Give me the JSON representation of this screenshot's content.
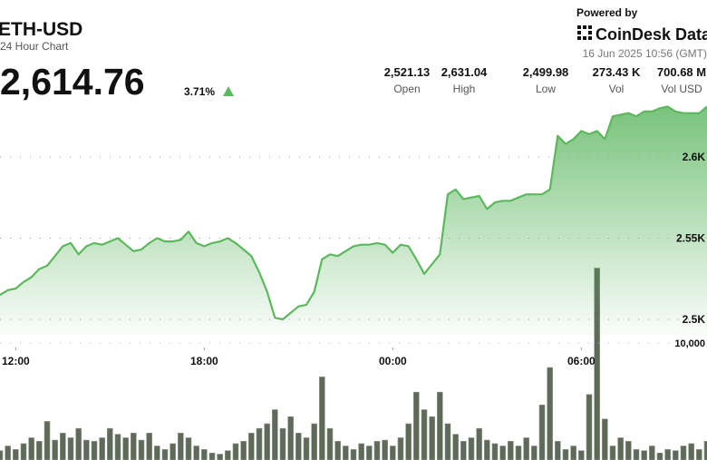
{
  "header": {
    "title": "ETH-USD",
    "subtitle": "24 Hour Chart",
    "price": "2,614.76",
    "change": "3.71%",
    "powered_by": "Powered by",
    "brand": "CoinDesk Data",
    "timestamp": "16 Jun 2025 10:56 (GMT)"
  },
  "stats": [
    {
      "value": "2,521.13",
      "label": "Open"
    },
    {
      "value": "2,631.04",
      "label": "High"
    },
    {
      "value": "2,499.98",
      "label": "Low"
    },
    {
      "value": "273.43 K",
      "label": "Vol"
    },
    {
      "value": "700.68 M",
      "label": "Vol USD"
    }
  ],
  "chart_data": {
    "type": "line",
    "x": [
      11.5,
      11.75,
      12,
      12.25,
      12.5,
      12.75,
      13,
      13.25,
      13.5,
      13.75,
      14,
      14.25,
      14.5,
      14.75,
      15,
      15.25,
      15.5,
      15.75,
      16,
      16.25,
      16.5,
      16.75,
      17,
      17.25,
      17.5,
      17.75,
      18,
      18.25,
      18.5,
      18.75,
      19,
      19.25,
      19.5,
      19.75,
      20,
      20.25,
      20.5,
      20.75,
      21,
      21.25,
      21.5,
      21.75,
      22,
      22.25,
      22.5,
      22.75,
      23,
      23.25,
      23.5,
      23.75,
      24,
      24.25,
      24.5,
      24.75,
      25,
      25.25,
      25.5,
      25.75,
      26,
      26.25,
      26.5,
      26.75,
      27,
      27.25,
      27.5,
      27.75,
      28,
      28.25,
      28.5,
      28.75,
      29,
      29.25,
      29.5,
      29.75,
      30,
      30.25,
      30.5,
      30.75,
      31,
      31.25,
      31.5,
      31.75,
      32,
      32.25,
      32.5,
      32.75,
      33,
      33.25,
      33.5,
      33.75,
      34
    ],
    "series": [
      {
        "name": "Price",
        "color": "#5cb85c",
        "values": [
          2515,
          2518,
          2519,
          2523,
          2526,
          2531,
          2533,
          2539,
          2545,
          2547,
          2540,
          2545,
          2547,
          2546,
          2548,
          2550,
          2546,
          2542,
          2543,
          2547,
          2550,
          2548,
          2548,
          2549,
          2554,
          2547,
          2545,
          2547,
          2548,
          2550,
          2547,
          2543,
          2539,
          2529,
          2517,
          2501,
          2500,
          2504,
          2508,
          2509,
          2517,
          2537,
          2540,
          2539,
          2542,
          2545,
          2546,
          2546,
          2547,
          2546,
          2541,
          2546,
          2545,
          2537,
          2528,
          2534,
          2540,
          2577,
          2580,
          2574,
          2575,
          2576,
          2568,
          2572,
          2573,
          2573,
          2575,
          2577,
          2577,
          2577,
          2580,
          2613,
          2608,
          2611,
          2616,
          2614,
          2616,
          2611,
          2625,
          2626,
          2627,
          2625,
          2628,
          2628,
          2630,
          2631,
          2628,
          2627,
          2627,
          2627,
          2631
        ]
      },
      {
        "name": "Volume",
        "color": "#5f6a5b",
        "axis": "y2",
        "values": [
          800,
          1200,
          900,
          1400,
          1900,
          1600,
          3300,
          1700,
          2300,
          1900,
          2700,
          1700,
          1600,
          1900,
          2700,
          2200,
          1900,
          2300,
          1700,
          2300,
          1200,
          900,
          1400,
          2300,
          1900,
          1200,
          900,
          600,
          500,
          800,
          1400,
          1600,
          2300,
          2700,
          3100,
          4300,
          2700,
          3700,
          2300,
          1900,
          3100,
          7100,
          2700,
          1600,
          1200,
          900,
          1400,
          1200,
          1600,
          1700,
          1200,
          1900,
          3100,
          5800,
          4300,
          3700,
          5800,
          3100,
          2200,
          1600,
          1900,
          2700,
          1700,
          1400,
          1200,
          1600,
          1200,
          1900,
          1200,
          4700,
          7900,
          1600,
          900,
          1200,
          800,
          5600,
          16400,
          3500,
          1200,
          1900,
          1600,
          900,
          800,
          1200,
          600,
          900,
          800,
          1200,
          1400,
          900,
          1600
        ]
      }
    ],
    "xlim": [
      11.5,
      34
    ],
    "xticks": [
      {
        "value": 12,
        "label": "12:00"
      },
      {
        "value": 18,
        "label": "18:00"
      },
      {
        "value": 24,
        "label": "00:00"
      },
      {
        "value": 30,
        "label": "06:00"
      }
    ],
    "ylim": [
      2490,
      2640
    ],
    "yticks": [
      {
        "value": 2500,
        "label": "2.5K"
      },
      {
        "value": 2550,
        "label": "2.55K"
      },
      {
        "value": 2600,
        "label": "2.6K"
      }
    ],
    "y2lim": [
      0,
      20000
    ],
    "y2ticks": [
      {
        "value": 10000,
        "label": "10,000"
      }
    ],
    "grid": true
  }
}
